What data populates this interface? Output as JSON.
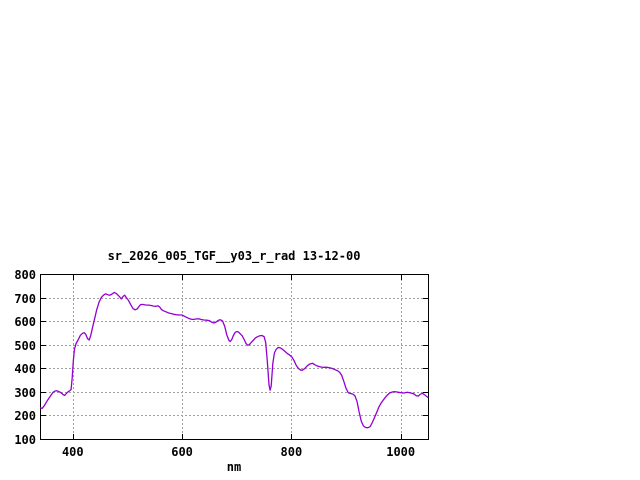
{
  "window": {
    "background": "#ffffff"
  },
  "chart_data": {
    "type": "line",
    "title": "sr_2026_005_TGF__y03_r_rad 13-12-00",
    "xlabel": "nm",
    "ylabel": "",
    "xlim": [
      340,
      1050
    ],
    "ylim": [
      100,
      800
    ],
    "xticks": [
      400,
      600,
      800,
      1000
    ],
    "yticks": [
      100,
      200,
      300,
      400,
      500,
      600,
      700,
      800
    ],
    "grid": true,
    "legend_position": "none",
    "colors": {
      "line": "#9400D3",
      "grid": "#a0a0a0",
      "border": "#000000",
      "text": "#000000"
    },
    "series": [
      {
        "name": "sr_2026_005_TGF__y03_r_rad",
        "x": [
          340,
          344,
          348,
          352,
          356,
          360,
          364,
          367,
          370,
          374,
          378,
          382,
          385,
          388,
          391,
          394,
          397,
          399,
          401,
          403,
          406,
          410,
          414,
          418,
          421,
          424,
          427,
          430,
          433,
          436,
          440,
          444,
          448,
          452,
          456,
          460,
          464,
          468,
          472,
          476,
          479,
          482,
          486,
          489,
          492,
          495,
          498,
          502,
          506,
          510,
          514,
          518,
          521,
          524,
          528,
          532,
          536,
          540,
          544,
          548,
          552,
          556,
          559,
          562,
          566,
          570,
          575,
          580,
          585,
          590,
          595,
          600,
          605,
          610,
          615,
          620,
          625,
          630,
          635,
          640,
          645,
          650,
          654,
          658,
          662,
          666,
          670,
          674,
          678,
          682,
          686,
          688,
          691,
          694,
          697,
          700,
          703,
          706,
          710,
          714,
          717,
          720,
          723,
          726,
          730,
          734,
          738,
          742,
          746,
          750,
          753,
          756,
          759,
          761,
          763,
          766,
          769,
          772,
          775,
          778,
          781,
          785,
          789,
          793,
          797,
          801,
          805,
          809,
          813,
          817,
          820,
          824,
          828,
          832,
          836,
          839,
          843,
          847,
          851,
          855,
          860,
          865,
          870,
          875,
          880,
          884,
          888,
          892,
          896,
          900,
          904,
          908,
          912,
          916,
          920,
          924,
          928,
          932,
          936,
          940,
          944,
          948,
          952,
          956,
          960,
          964,
          968,
          972,
          976,
          980,
          984,
          988,
          992,
          996,
          1000,
          1004,
          1008,
          1012,
          1016,
          1020,
          1024,
          1028,
          1032,
          1036,
          1040,
          1044,
          1048,
          1050
        ],
        "y": [
          233,
          230,
          242,
          258,
          272,
          285,
          298,
          303,
          305,
          302,
          297,
          289,
          285,
          292,
          300,
          304,
          310,
          360,
          430,
          480,
          505,
          522,
          540,
          549,
          551,
          543,
          526,
          520,
          540,
          572,
          610,
          650,
          680,
          700,
          710,
          716,
          712,
          710,
          715,
          722,
          718,
          712,
          702,
          694,
          705,
          710,
          700,
          688,
          670,
          654,
          648,
          652,
          662,
          670,
          671,
          669,
          668,
          668,
          666,
          664,
          663,
          665,
          660,
          650,
          644,
          640,
          635,
          632,
          629,
          627,
          626,
          626,
          620,
          614,
          609,
          607,
          609,
          610,
          607,
          605,
          604,
          602,
          596,
          592,
          596,
          603,
          606,
          601,
          578,
          540,
          517,
          514,
          522,
          540,
          552,
          556,
          554,
          547,
          538,
          520,
          505,
          498,
          500,
          508,
          518,
          528,
          534,
          538,
          539,
          534,
          510,
          430,
          330,
          307,
          325,
          420,
          465,
          480,
          487,
          488,
          485,
          478,
          470,
          462,
          456,
          448,
          432,
          412,
          399,
          392,
          392,
          398,
          408,
          416,
          420,
          421,
          415,
          410,
          407,
          405,
          404,
          404,
          402,
          399,
          394,
          390,
          384,
          370,
          345,
          315,
          297,
          293,
          291,
          284,
          260,
          215,
          175,
          155,
          149,
          148,
          152,
          170,
          190,
          212,
          235,
          252,
          265,
          277,
          288,
          295,
          299,
          301,
          300,
          298,
          297,
          295,
          296,
          298,
          297,
          294,
          292,
          284,
          282,
          290,
          294,
          287,
          280,
          276
        ]
      }
    ]
  }
}
